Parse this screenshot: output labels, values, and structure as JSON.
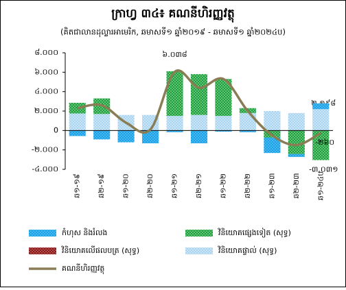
{
  "chart_data": {
    "type": "stacked-bar-line",
    "title": "ក្រាហ្វ ៣៤៖ គណនីហិរញ្ញវត្ថុ",
    "subtitle": "(គិតជាលានដុល្លារអាមេរិក, ឆមាសទី១ ឆ្នាំ២០១៩ - ឆមាសទី១ ឆ្នាំ២០២៤ប)",
    "categories": [
      "ឆ១-១៩",
      "ឆ២-១៩",
      "ឆ១-២០",
      "ឆ២-២០",
      "ឆ១-២១",
      "ឆ២-២១",
      "ឆ១-២២",
      "ឆ២-២២",
      "ឆ១-២៣",
      "ឆ២-២៣",
      "ឆ១-២៤ប"
    ],
    "ylim": [
      -4000,
      8000
    ],
    "yticks": [
      {
        "value": 8000,
        "label": "៨.០០០"
      },
      {
        "value": 6000,
        "label": "៦.០០០"
      },
      {
        "value": 4000,
        "label": "៤.០០០"
      },
      {
        "value": 2000,
        "label": "២.០០០"
      },
      0,
      {
        "value": -2000,
        "label": "-២.០០០"
      },
      {
        "value": -4000,
        "label": "-៤.០០០"
      }
    ],
    "series": [
      {
        "name": "វិនិយោគផ្ទាល់ (សុទ្ធ)",
        "color": "#a9d5f0",
        "values": [
          1750,
          1700,
          1600,
          1600,
          1500,
          1600,
          1500,
          1800,
          2000,
          1800,
          2198
        ],
        "value_labels": [
          null,
          null,
          null,
          null,
          null,
          null,
          null,
          null,
          null,
          null,
          "២.១៩៨"
        ]
      },
      {
        "name": "វិនិយោគលើផលបត្រ (សុទ្ធ)",
        "color": "#8b1a1a",
        "values": [
          -20,
          -20,
          -20,
          -20,
          -20,
          -20,
          -20,
          -20,
          -20,
          -20,
          -20
        ]
      },
      {
        "name": "វិនិយោគផ្សេងទៀត (សុទ្ធ)",
        "color": "#1e9e3e",
        "values": [
          1100,
          1600,
          0,
          0,
          4600,
          4200,
          3800,
          500,
          -700,
          -2400,
          -3031
        ],
        "value_labels": [
          null,
          null,
          null,
          null,
          null,
          null,
          null,
          null,
          null,
          null,
          "-៣.០៣១"
        ]
      },
      {
        "name": "កំហុស និងរំលង",
        "color": "#1aa3e8",
        "values": [
          -550,
          -900,
          -1200,
          -1300,
          -150,
          -1300,
          -100,
          -150,
          -1600,
          -300,
          600
        ]
      },
      {
        "name": "គណនីហិរញ្ញវត្ថុ",
        "type": "line",
        "color": "#8a7d55",
        "values": [
          2300,
          2600,
          800,
          100,
          6038,
          4400,
          5300,
          2000,
          -500,
          -1500,
          -260
        ],
        "value_labels": [
          null,
          null,
          null,
          null,
          "៦.០៣៨",
          null,
          null,
          null,
          null,
          null,
          "-២៦០"
        ]
      }
    ]
  }
}
